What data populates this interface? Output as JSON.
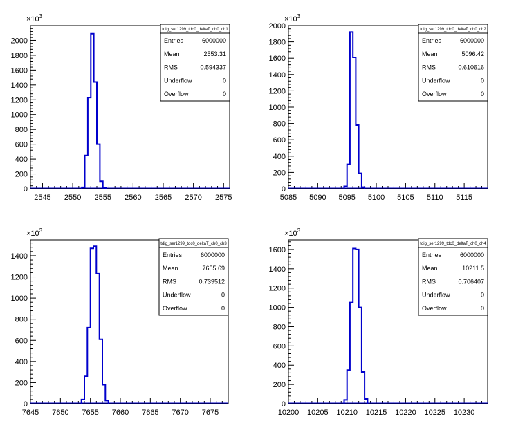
{
  "chart_data": [
    {
      "type": "histogram",
      "title": "",
      "xlabel": "",
      "ylabel": "",
      "xlim": [
        2543,
        2576
      ],
      "ylim": [
        0,
        2200
      ],
      "x_ticks": [
        2545,
        2550,
        2555,
        2560,
        2565,
        2570,
        2575
      ],
      "y_ticks": [
        0,
        200,
        400,
        600,
        800,
        1000,
        1200,
        1400,
        1600,
        1800,
        2000
      ],
      "y_multiplier": "×10",
      "y_multiplier_exp": "3",
      "bin_width": 0.5,
      "bins": [
        {
          "x": 2551.5,
          "y": 20
        },
        {
          "x": 2552.0,
          "y": 450
        },
        {
          "x": 2552.5,
          "y": 1230
        },
        {
          "x": 2553.0,
          "y": 2090
        },
        {
          "x": 2553.5,
          "y": 1440
        },
        {
          "x": 2554.0,
          "y": 600
        },
        {
          "x": 2554.5,
          "y": 100
        },
        {
          "x": 2555.0,
          "y": 10
        }
      ],
      "color": "#0000cc",
      "stats": {
        "name": "tdig_ser1299_tdc0_deltaT_ch0_ch1",
        "rows": [
          {
            "label": "Entries",
            "value": "6000000"
          },
          {
            "label": "Mean",
            "value": "2553.31"
          },
          {
            "label": "RMS",
            "value": "0.594337"
          },
          {
            "label": "Underflow",
            "value": "0"
          },
          {
            "label": "Overflow",
            "value": "0"
          }
        ]
      }
    },
    {
      "type": "histogram",
      "title": "",
      "xlabel": "",
      "ylabel": "",
      "xlim": [
        5085,
        5119
      ],
      "ylim": [
        0,
        2000
      ],
      "x_ticks": [
        5085,
        5090,
        5095,
        5100,
        5105,
        5110,
        5115
      ],
      "y_ticks": [
        0,
        200,
        400,
        600,
        800,
        1000,
        1200,
        1400,
        1600,
        1800,
        2000
      ],
      "y_multiplier": "×10",
      "y_multiplier_exp": "3",
      "bin_width": 0.5,
      "bins": [
        {
          "x": 5094.5,
          "y": 30
        },
        {
          "x": 5095.0,
          "y": 300
        },
        {
          "x": 5095.5,
          "y": 1920
        },
        {
          "x": 5096.0,
          "y": 1610
        },
        {
          "x": 5096.5,
          "y": 780
        },
        {
          "x": 5097.0,
          "y": 190
        },
        {
          "x": 5097.5,
          "y": 20
        }
      ],
      "color": "#0000cc",
      "stats": {
        "name": "tdig_ser1299_tdc0_deltaT_ch0_ch2",
        "rows": [
          {
            "label": "Entries",
            "value": "6000000"
          },
          {
            "label": "Mean",
            "value": "5096.42"
          },
          {
            "label": "RMS",
            "value": "0.610616"
          },
          {
            "label": "Underflow",
            "value": "0"
          },
          {
            "label": "Overflow",
            "value": "0"
          }
        ]
      }
    },
    {
      "type": "histogram",
      "title": "",
      "xlabel": "",
      "ylabel": "",
      "xlim": [
        7645,
        7678
      ],
      "ylim": [
        0,
        1550
      ],
      "x_ticks": [
        7645,
        7650,
        7655,
        7660,
        7665,
        7670,
        7675
      ],
      "y_ticks": [
        0,
        200,
        400,
        600,
        800,
        1000,
        1200,
        1400
      ],
      "y_multiplier": "×10",
      "y_multiplier_exp": "3",
      "bin_width": 0.5,
      "bins": [
        {
          "x": 7653.5,
          "y": 40
        },
        {
          "x": 7654.0,
          "y": 260
        },
        {
          "x": 7654.5,
          "y": 720
        },
        {
          "x": 7655.0,
          "y": 1470
        },
        {
          "x": 7655.5,
          "y": 1490
        },
        {
          "x": 7656.0,
          "y": 1230
        },
        {
          "x": 7656.5,
          "y": 610
        },
        {
          "x": 7657.0,
          "y": 180
        },
        {
          "x": 7657.5,
          "y": 30
        }
      ],
      "color": "#0000cc",
      "stats": {
        "name": "tdig_ser1299_tdc0_deltaT_ch0_ch3",
        "rows": [
          {
            "label": "Entries",
            "value": "6000000"
          },
          {
            "label": "Mean",
            "value": "7655.69"
          },
          {
            "label": "RMS",
            "value": "0.739512"
          },
          {
            "label": "Underflow",
            "value": "0"
          },
          {
            "label": "Overflow",
            "value": "0"
          }
        ]
      }
    },
    {
      "type": "histogram",
      "title": "",
      "xlabel": "",
      "ylabel": "",
      "xlim": [
        10200,
        10234
      ],
      "ylim": [
        0,
        1700
      ],
      "x_ticks": [
        10200,
        10205,
        10210,
        10215,
        10220,
        10225,
        10230
      ],
      "y_ticks": [
        0,
        200,
        400,
        600,
        800,
        1000,
        1200,
        1400,
        1600
      ],
      "y_multiplier": "×10",
      "y_multiplier_exp": "3",
      "bin_width": 0.5,
      "bins": [
        {
          "x": 10209.5,
          "y": 40
        },
        {
          "x": 10210.0,
          "y": 350
        },
        {
          "x": 10210.5,
          "y": 1050
        },
        {
          "x": 10211.0,
          "y": 1610
        },
        {
          "x": 10211.5,
          "y": 1600
        },
        {
          "x": 10212.0,
          "y": 1000
        },
        {
          "x": 10212.5,
          "y": 330
        },
        {
          "x": 10213.0,
          "y": 50
        }
      ],
      "color": "#0000cc",
      "stats": {
        "name": "tdig_ser1299_tdc0_deltaT_ch0_ch4",
        "rows": [
          {
            "label": "Entries",
            "value": "6000000"
          },
          {
            "label": "Mean",
            "value": "10211.5"
          },
          {
            "label": "RMS",
            "value": "0.706407"
          },
          {
            "label": "Underflow",
            "value": "0"
          },
          {
            "label": "Overflow",
            "value": "0"
          }
        ]
      }
    }
  ]
}
